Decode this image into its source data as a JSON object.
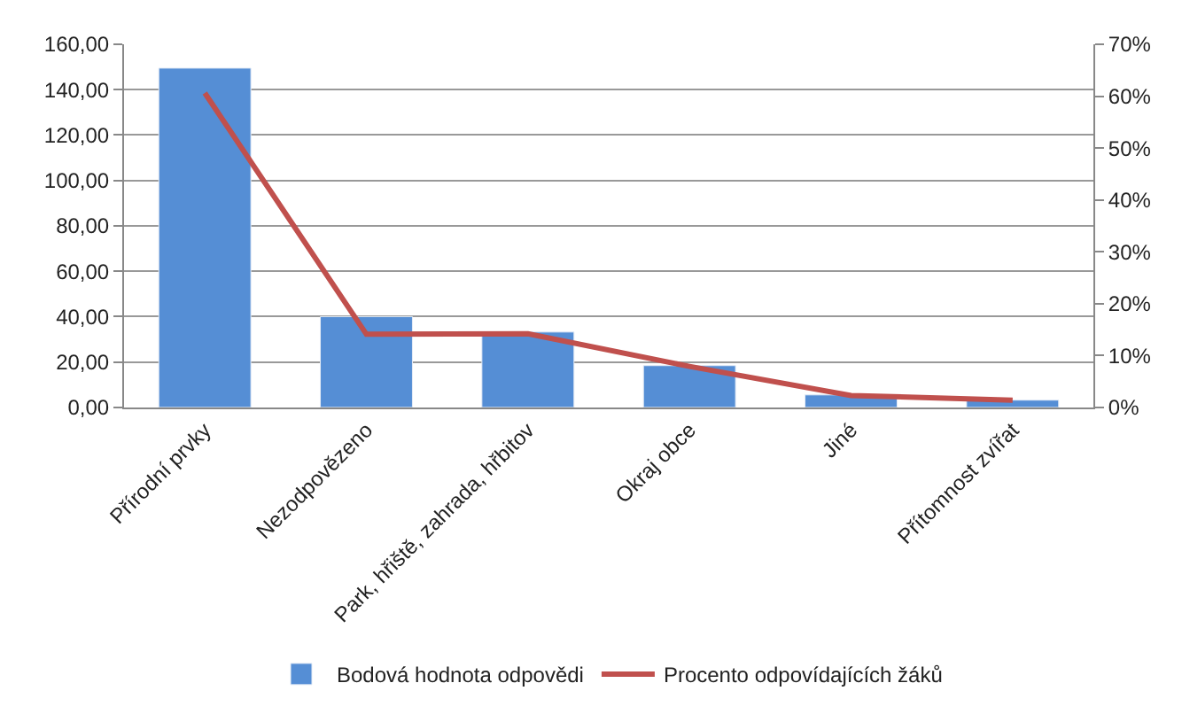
{
  "chart_data": {
    "type": "bar",
    "categories": [
      "Přírodní prvky",
      "Nezodpovězeno",
      "Park, hřiště, zahrada, hřbitov",
      "Okraj obce",
      "Jiné",
      "Přítomnost zvířat"
    ],
    "series": [
      {
        "name": "Bodová hodnota odpovědi",
        "color": "#558ed5",
        "values": [
          149.5,
          40,
          33.2,
          18.4,
          5.5,
          3.2
        ]
      },
      {
        "name": "Procento odpovídajících žáků",
        "type": "line",
        "axis": "y2",
        "color": "#c0504d",
        "values": [
          60.6,
          14.1,
          14.2,
          7.9,
          2.3,
          1.4
        ]
      }
    ],
    "ylim": [
      0,
      160
    ],
    "yticks": [
      {
        "value": 0,
        "label": "0,00"
      },
      {
        "value": 20,
        "label": "20,00"
      },
      {
        "value": 40,
        "label": "40,00"
      },
      {
        "value": 60,
        "label": "60,00"
      },
      {
        "value": 80,
        "label": "80,00"
      },
      {
        "value": 100,
        "label": "100,00"
      },
      {
        "value": 120,
        "label": "120,00"
      },
      {
        "value": 140,
        "label": "140,00"
      },
      {
        "value": 160,
        "label": "160,00"
      }
    ],
    "y2lim": [
      0,
      70
    ],
    "y2ticks": [
      {
        "value": 0,
        "label": "0%"
      },
      {
        "value": 10,
        "label": "10%"
      },
      {
        "value": 20,
        "label": "20%"
      },
      {
        "value": 30,
        "label": "30%"
      },
      {
        "value": 40,
        "label": "40%"
      },
      {
        "value": 50,
        "label": "50%"
      },
      {
        "value": 60,
        "label": "60%"
      },
      {
        "value": 70,
        "label": "70%"
      }
    ],
    "grid": "y",
    "legend": "bottom",
    "marker": "none",
    "line_style": "solid"
  }
}
